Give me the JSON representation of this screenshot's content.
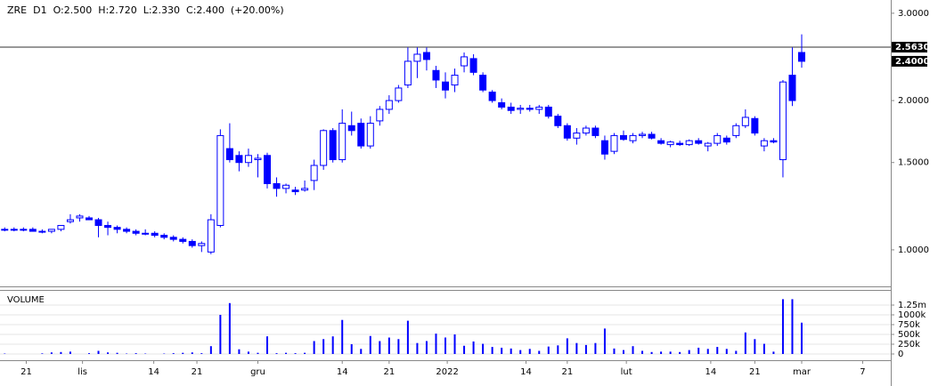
{
  "chart_data": [
    {
      "type": "candlestick",
      "title": "ZRE  D1  O:2.500  H:2.720  L:2.330  C:2.400  (+20.00%)",
      "log_scale": true,
      "color": "#0000ff",
      "ylim": [
        0.844,
        3.19
      ],
      "yticks": [
        {
          "value": 3,
          "label": "3.0000"
        },
        {
          "value": 2,
          "label": "2.0000"
        },
        {
          "value": 1.5,
          "label": "1.5000"
        },
        {
          "value": 1,
          "label": "1.0000"
        }
      ],
      "marker_labels": [
        {
          "value": 2.563,
          "label": "2.5630"
        },
        {
          "value": 2.4,
          "label": "2.4000"
        }
      ],
      "open": [
        1.1,
        1.1,
        1.1,
        1.1,
        1.09,
        1.09,
        1.1,
        1.14,
        1.16,
        1.16,
        1.15,
        1.12,
        1.11,
        1.1,
        1.09,
        1.08,
        1.08,
        1.07,
        1.06,
        1.05,
        1.04,
        1.02,
        0.99,
        1.12,
        1.6,
        1.55,
        1.5,
        1.52,
        1.55,
        1.36,
        1.33,
        1.32,
        1.32,
        1.38,
        1.48,
        1.74,
        1.52,
        1.78,
        1.8,
        1.62,
        1.82,
        1.92,
        2.0,
        2.15,
        2.4,
        2.5,
        2.3,
        2.18,
        2.15,
        2.35,
        2.43,
        2.25,
        2.08,
        1.98,
        1.94,
        1.92,
        1.93,
        1.92,
        1.94,
        1.86,
        1.78,
        1.68,
        1.72,
        1.76,
        1.66,
        1.58,
        1.7,
        1.66,
        1.7,
        1.71,
        1.66,
        1.63,
        1.64,
        1.63,
        1.66,
        1.62,
        1.64,
        1.68,
        1.7,
        1.78,
        1.84,
        1.62,
        1.66,
        1.52,
        2.25,
        2.5
      ],
      "high": [
        1.11,
        1.11,
        1.11,
        1.11,
        1.1,
        1.1,
        1.12,
        1.18,
        1.18,
        1.17,
        1.16,
        1.14,
        1.12,
        1.11,
        1.1,
        1.1,
        1.09,
        1.08,
        1.07,
        1.06,
        1.05,
        1.04,
        1.18,
        1.75,
        1.8,
        1.58,
        1.6,
        1.56,
        1.57,
        1.4,
        1.36,
        1.34,
        1.38,
        1.52,
        1.75,
        1.76,
        1.92,
        1.9,
        1.84,
        1.86,
        1.95,
        2.05,
        2.15,
        2.56,
        2.56,
        2.56,
        2.35,
        2.28,
        2.32,
        2.5,
        2.48,
        2.28,
        2.1,
        2.02,
        1.98,
        1.96,
        1.96,
        1.96,
        1.96,
        1.88,
        1.8,
        1.76,
        1.78,
        1.78,
        1.7,
        1.72,
        1.74,
        1.72,
        1.73,
        1.73,
        1.68,
        1.66,
        1.66,
        1.67,
        1.68,
        1.65,
        1.72,
        1.7,
        1.8,
        1.92,
        1.86,
        1.68,
        1.68,
        2.2,
        2.56,
        2.72
      ],
      "low": [
        1.09,
        1.09,
        1.09,
        1.09,
        1.08,
        1.08,
        1.09,
        1.13,
        1.14,
        1.15,
        1.06,
        1.07,
        1.08,
        1.08,
        1.07,
        1.07,
        1.06,
        1.05,
        1.04,
        1.03,
        1.01,
        0.99,
        0.98,
        1.11,
        1.5,
        1.44,
        1.47,
        1.4,
        1.33,
        1.28,
        1.3,
        1.29,
        1.31,
        1.32,
        1.45,
        1.5,
        1.5,
        1.7,
        1.6,
        1.6,
        1.78,
        1.88,
        1.98,
        2.12,
        2.22,
        2.3,
        2.12,
        2.02,
        2.08,
        2.28,
        2.25,
        2.08,
        1.98,
        1.92,
        1.88,
        1.88,
        1.9,
        1.88,
        1.84,
        1.76,
        1.66,
        1.63,
        1.7,
        1.68,
        1.52,
        1.56,
        1.66,
        1.64,
        1.68,
        1.67,
        1.63,
        1.61,
        1.62,
        1.62,
        1.63,
        1.58,
        1.62,
        1.63,
        1.68,
        1.76,
        1.7,
        1.58,
        1.64,
        1.4,
        1.95,
        2.33
      ],
      "close": [
        1.1,
        1.1,
        1.1,
        1.09,
        1.09,
        1.1,
        1.12,
        1.15,
        1.17,
        1.15,
        1.12,
        1.11,
        1.1,
        1.09,
        1.08,
        1.08,
        1.07,
        1.06,
        1.05,
        1.04,
        1.02,
        1.03,
        1.15,
        1.7,
        1.52,
        1.5,
        1.55,
        1.53,
        1.36,
        1.33,
        1.35,
        1.31,
        1.33,
        1.48,
        1.74,
        1.52,
        1.8,
        1.74,
        1.62,
        1.8,
        1.92,
        2.0,
        2.12,
        2.4,
        2.48,
        2.42,
        2.2,
        2.1,
        2.25,
        2.45,
        2.28,
        2.1,
        2.0,
        1.94,
        1.91,
        1.93,
        1.92,
        1.94,
        1.86,
        1.78,
        1.68,
        1.72,
        1.76,
        1.7,
        1.56,
        1.7,
        1.67,
        1.7,
        1.71,
        1.68,
        1.64,
        1.65,
        1.63,
        1.66,
        1.64,
        1.64,
        1.7,
        1.65,
        1.78,
        1.85,
        1.72,
        1.66,
        1.65,
        2.18,
        2.0,
        2.4
      ]
    },
    {
      "type": "bar",
      "title": "VOLUME",
      "color": "#0000ff",
      "grid": true,
      "ylim": [
        -159000,
        1636000
      ],
      "yticks": [
        0,
        {
          "value": 250000,
          "label": "250k"
        },
        {
          "value": 500000,
          "label": "500k"
        },
        {
          "value": 750000,
          "label": "750k"
        },
        {
          "value": 1000000,
          "label": "1000k"
        },
        {
          "value": 1250000,
          "label": "1.25m"
        }
      ],
      "xlim": [
        -0.5,
        94.5
      ],
      "xticks": [
        {
          "value": 2.3,
          "label": "21"
        },
        {
          "value": 8.3,
          "label": "lis"
        },
        {
          "value": 15.9,
          "label": "14"
        },
        {
          "value": 20.5,
          "label": "21"
        },
        {
          "value": 27,
          "label": "gru"
        },
        {
          "value": 36,
          "label": "14"
        },
        {
          "value": 41,
          "label": "21"
        },
        {
          "value": 47.2,
          "label": "2022"
        },
        {
          "value": 55.6,
          "label": "14"
        },
        {
          "value": 60,
          "label": "21"
        },
        {
          "value": 66.3,
          "label": "lut"
        },
        {
          "value": 75.3,
          "label": "14"
        },
        {
          "value": 80,
          "label": "21"
        },
        {
          "value": 85,
          "label": "mar"
        },
        {
          "value": 91.5,
          "label": "7"
        }
      ],
      "values": [
        10000,
        0,
        0,
        0,
        15000,
        40000,
        50000,
        60000,
        0,
        20000,
        80000,
        40000,
        30000,
        10000,
        20000,
        10000,
        0,
        10000,
        20000,
        30000,
        40000,
        20000,
        200000,
        1000000,
        1300000,
        120000,
        60000,
        30000,
        450000,
        20000,
        30000,
        20000,
        30000,
        330000,
        380000,
        450000,
        870000,
        250000,
        130000,
        460000,
        330000,
        420000,
        380000,
        850000,
        280000,
        330000,
        520000,
        420000,
        500000,
        210000,
        320000,
        260000,
        180000,
        160000,
        140000,
        100000,
        130000,
        80000,
        190000,
        220000,
        400000,
        280000,
        230000,
        280000,
        650000,
        140000,
        100000,
        200000,
        80000,
        50000,
        60000,
        60000,
        50000,
        100000,
        160000,
        130000,
        180000,
        130000,
        80000,
        550000,
        380000,
        260000,
        60000,
        1400000,
        1400000,
        800000
      ]
    }
  ]
}
